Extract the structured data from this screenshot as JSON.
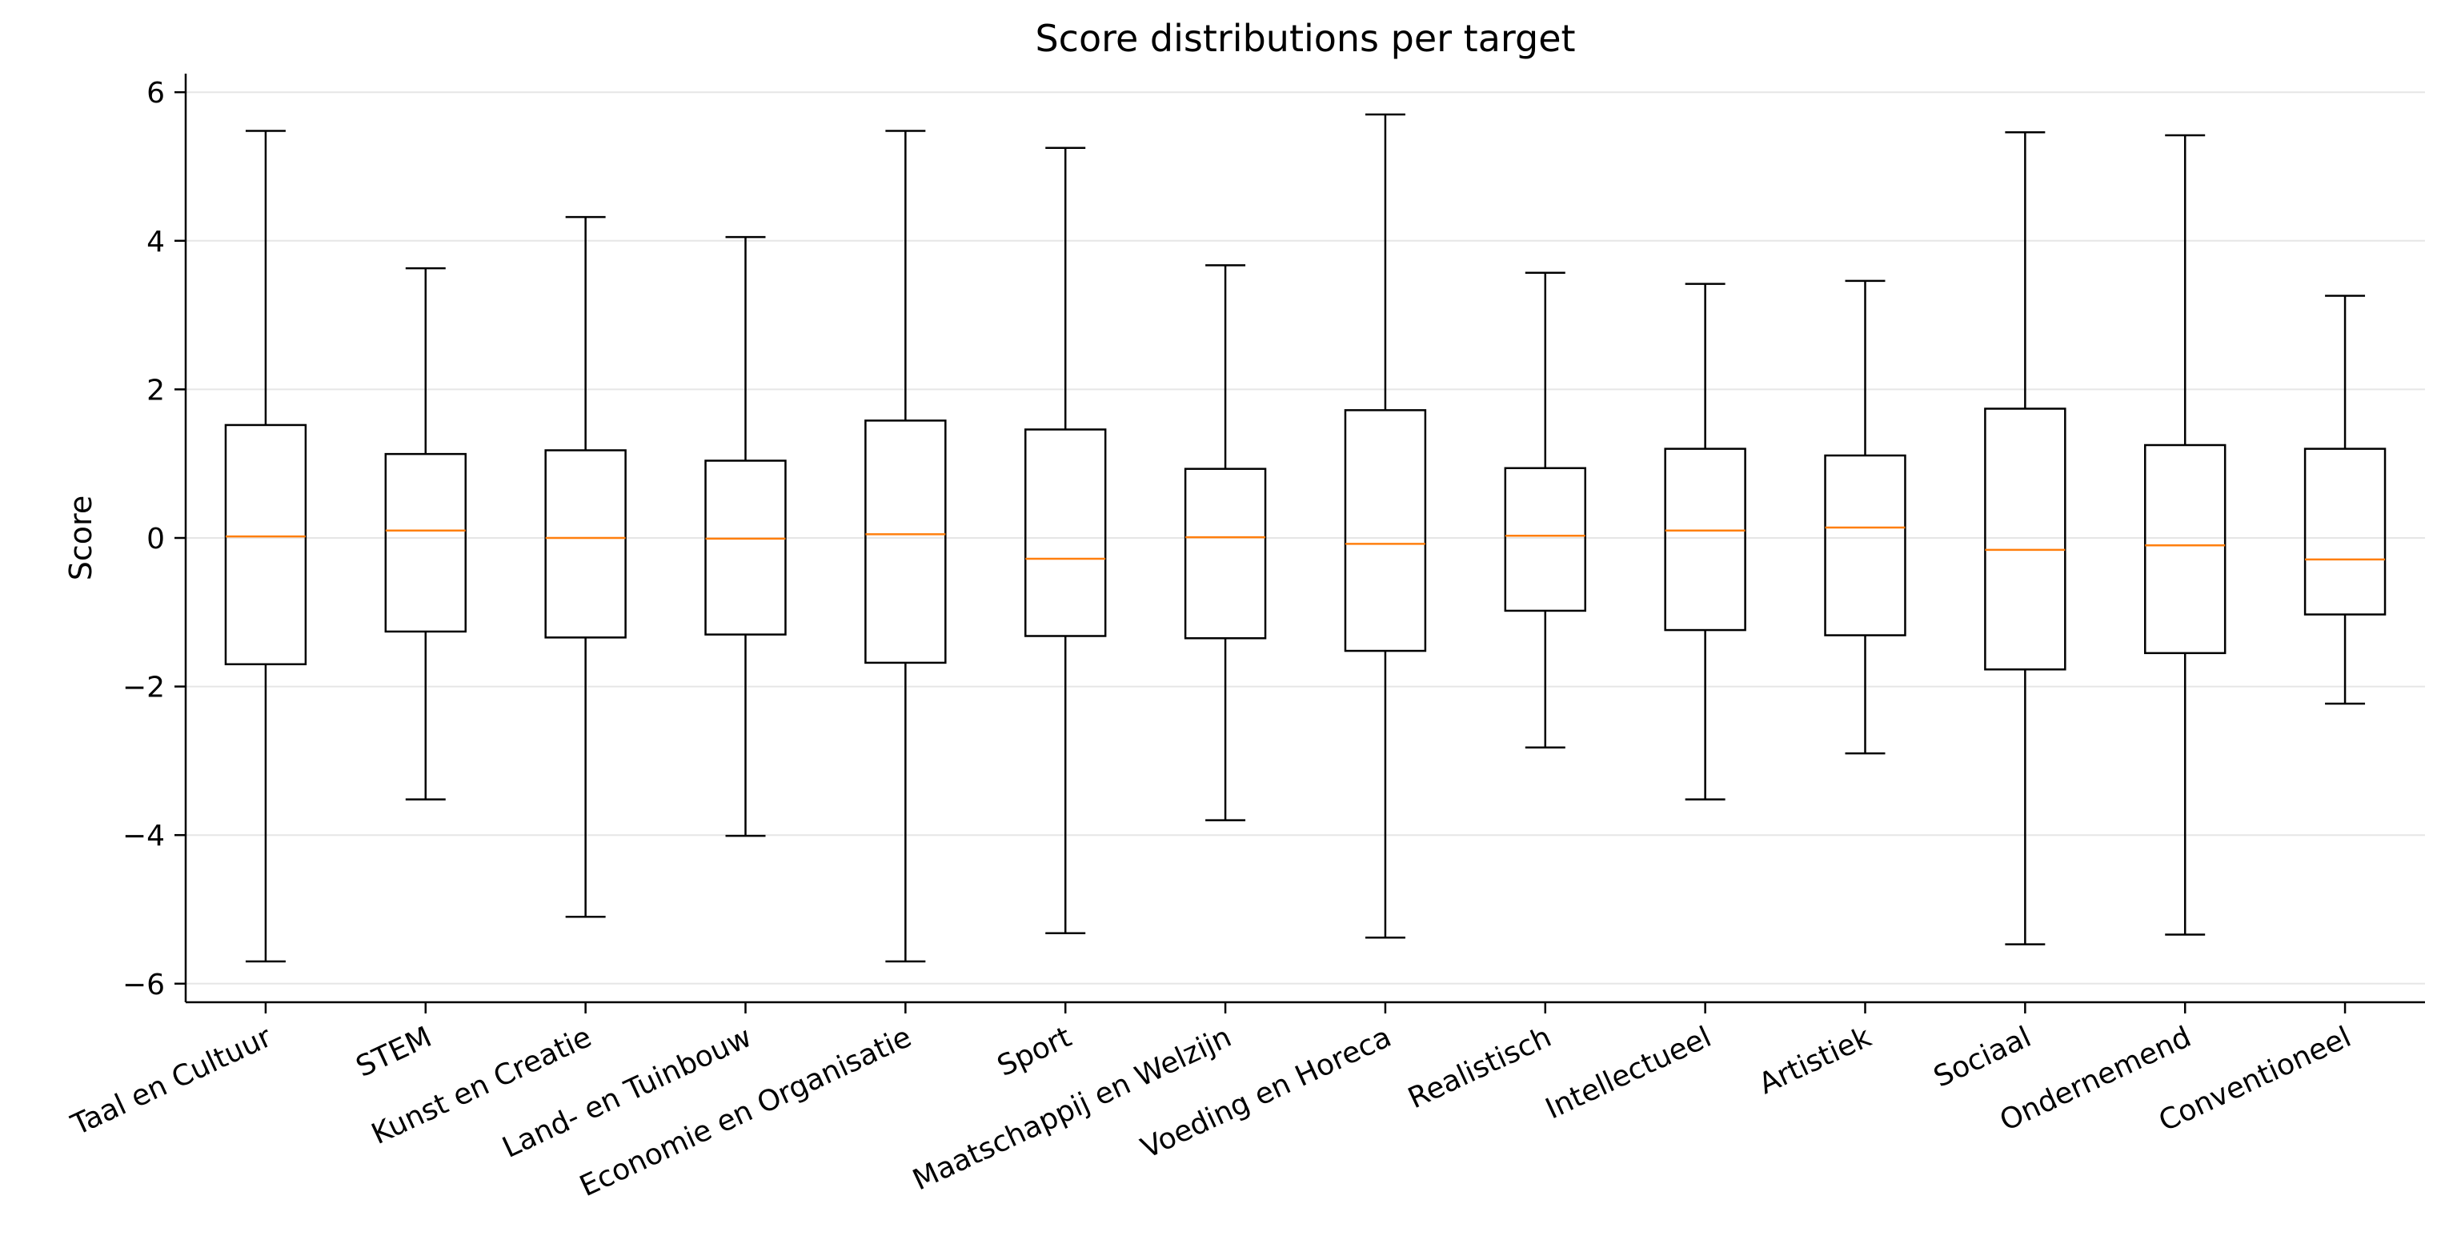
{
  "chart_data": {
    "type": "boxplot",
    "title": "Score distributions per target",
    "xlabel": "",
    "ylabel": "Score",
    "ylim": [
      -6.25,
      6.25
    ],
    "yticks": [
      -6,
      -4,
      -2,
      0,
      2,
      4,
      6
    ],
    "ytick_labels": [
      "−6",
      "−4",
      "−2",
      "0",
      "2",
      "4",
      "6"
    ],
    "grid": "horizontal",
    "colors": {
      "box": "#000000",
      "median": "#ff7f0e",
      "grid": "#e6e6e6"
    },
    "categories": [
      "Taal en Cultuur",
      "STEM",
      "Kunst en Creatie",
      "Land- en Tuinbouw",
      "Economie en Organisatie",
      "Sport",
      "Maatschappij en Welzijn",
      "Voeding en Horeca",
      "Realistisch",
      "Intellectueel",
      "Artistiek",
      "Sociaal",
      "Ondernemend",
      "Conventioneel"
    ],
    "boxes": [
      {
        "whislo": -5.7,
        "q1": -1.7,
        "med": 0.02,
        "q3": 1.52,
        "whishi": 5.48
      },
      {
        "whislo": -3.52,
        "q1": -1.26,
        "med": 0.1,
        "q3": 1.13,
        "whishi": 3.63
      },
      {
        "whislo": -5.1,
        "q1": -1.34,
        "med": 0.0,
        "q3": 1.18,
        "whishi": 4.32
      },
      {
        "whislo": -4.01,
        "q1": -1.3,
        "med": -0.01,
        "q3": 1.04,
        "whishi": 4.05
      },
      {
        "whislo": -5.7,
        "q1": -1.68,
        "med": 0.05,
        "q3": 1.58,
        "whishi": 5.48
      },
      {
        "whislo": -5.32,
        "q1": -1.32,
        "med": -0.28,
        "q3": 1.46,
        "whishi": 5.25
      },
      {
        "whislo": -3.8,
        "q1": -1.35,
        "med": 0.01,
        "q3": 0.93,
        "whishi": 3.67
      },
      {
        "whislo": -5.38,
        "q1": -1.52,
        "med": -0.08,
        "q3": 1.72,
        "whishi": 5.7
      },
      {
        "whislo": -2.82,
        "q1": -0.98,
        "med": 0.03,
        "q3": 0.94,
        "whishi": 3.57
      },
      {
        "whislo": -3.52,
        "q1": -1.24,
        "med": 0.1,
        "q3": 1.2,
        "whishi": 3.42
      },
      {
        "whislo": -2.9,
        "q1": -1.31,
        "med": 0.14,
        "q3": 1.11,
        "whishi": 3.46
      },
      {
        "whislo": -5.47,
        "q1": -1.77,
        "med": -0.16,
        "q3": 1.74,
        "whishi": 5.46
      },
      {
        "whislo": -5.34,
        "q1": -1.55,
        "med": -0.1,
        "q3": 1.25,
        "whishi": 5.42
      },
      {
        "whislo": -2.23,
        "q1": -1.03,
        "med": -0.29,
        "q3": 1.2,
        "whishi": 3.26
      }
    ]
  }
}
